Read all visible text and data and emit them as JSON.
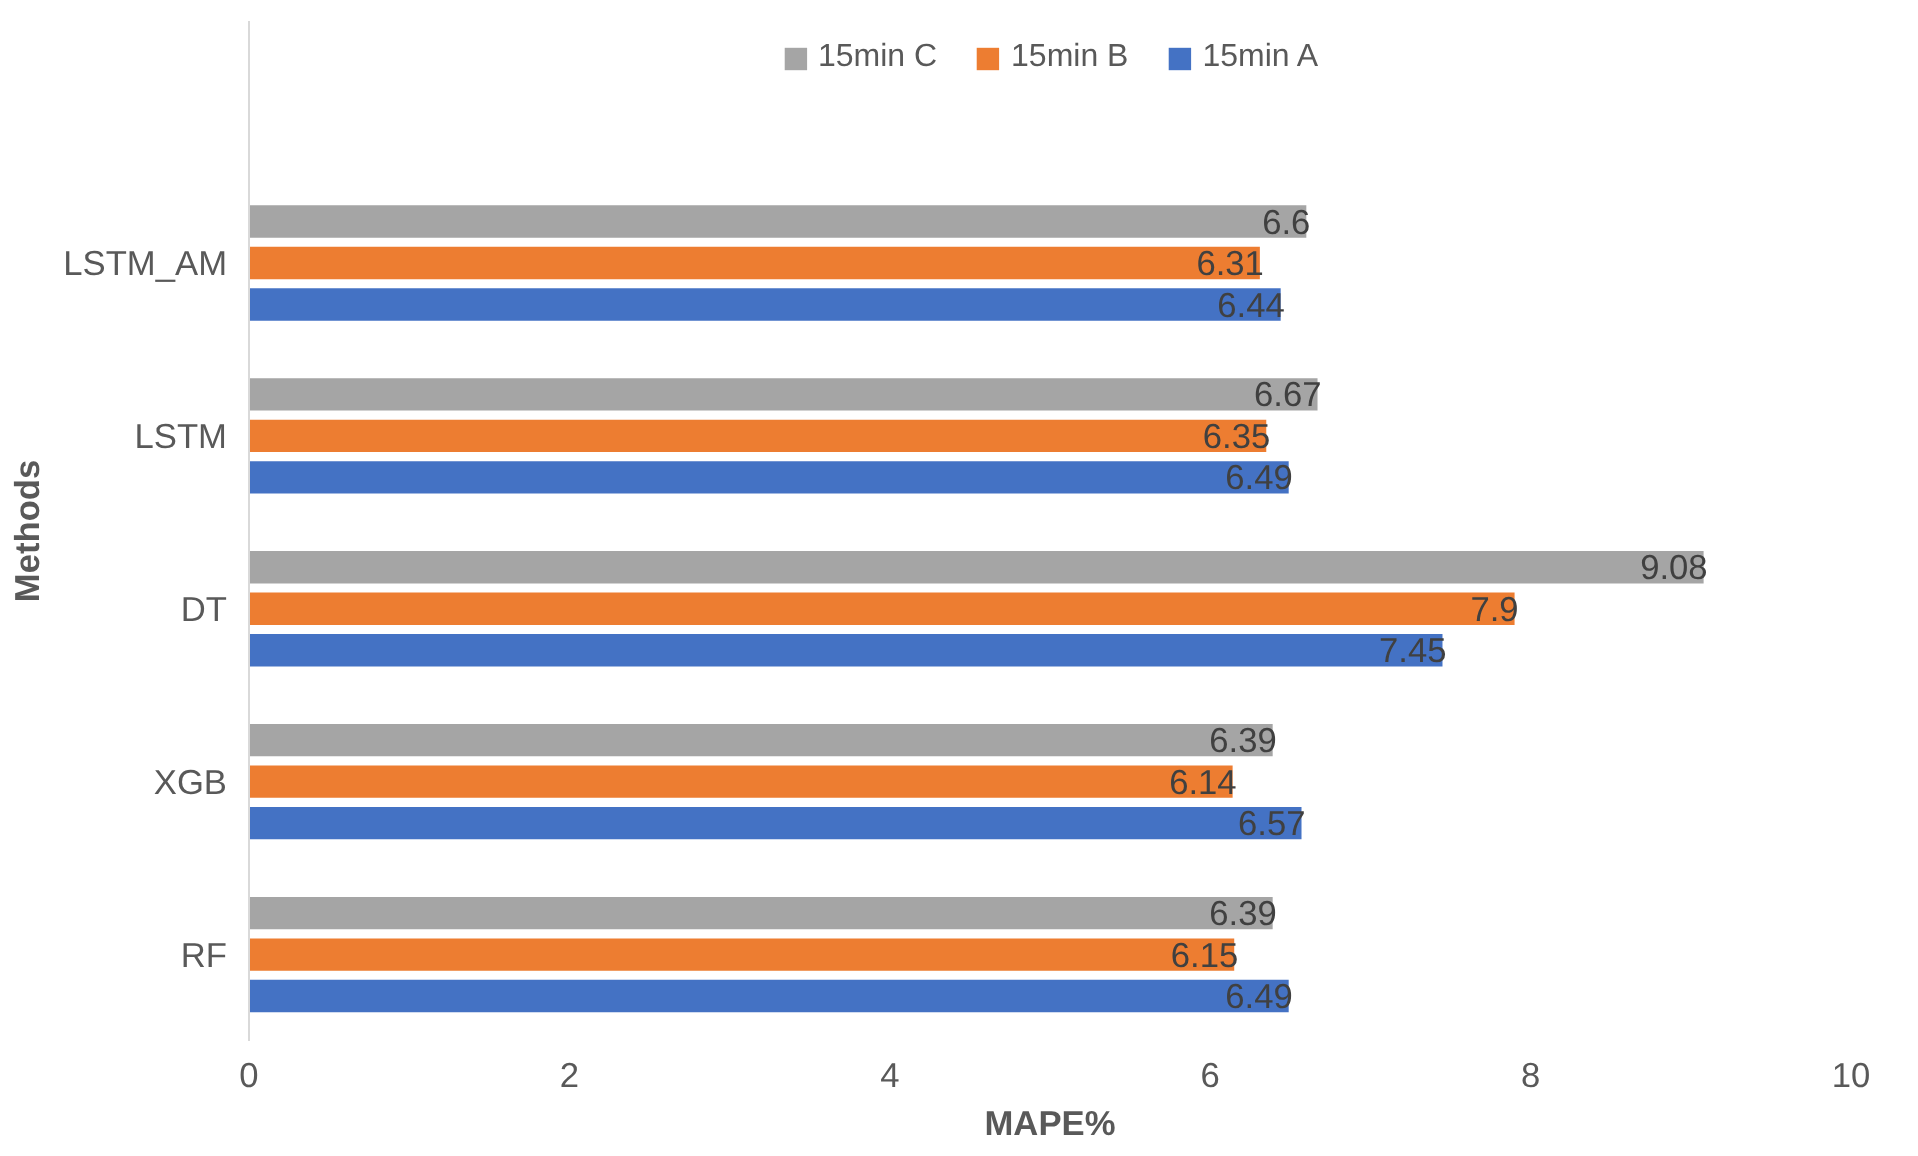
{
  "chart_data": {
    "type": "bar",
    "orientation": "horizontal",
    "xlabel": "MAPE%",
    "ylabel": "Methods",
    "categories": [
      "LSTM_AM",
      "LSTM",
      "DT",
      "XGB",
      "RF"
    ],
    "series": [
      {
        "name": "15min C",
        "color": "#a5a5a5",
        "values": [
          6.6,
          6.67,
          9.08,
          6.39,
          6.39
        ]
      },
      {
        "name": "15min B",
        "color": "#ed7d31",
        "values": [
          6.31,
          6.35,
          7.9,
          6.14,
          6.15
        ]
      },
      {
        "name": "15min A",
        "color": "#4472c4",
        "values": [
          6.44,
          6.49,
          7.45,
          6.57,
          6.49
        ]
      }
    ],
    "xlim": [
      0,
      10
    ],
    "xticks": [
      0,
      2,
      4,
      6,
      8,
      10
    ],
    "data_labels": true,
    "legend": "top",
    "grid": false
  }
}
